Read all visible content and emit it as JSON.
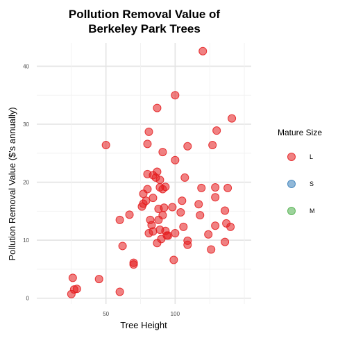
{
  "chart_data": {
    "type": "scatter",
    "title_lines": [
      "Pollution Removal Value of",
      "Berkeley Park Trees"
    ],
    "xlabel": "Tree Height",
    "ylabel": "Pollution Removal Value ($'s annually)",
    "xlim": [
      0,
      155
    ],
    "ylim": [
      -1,
      44
    ],
    "xticks": [
      50,
      100
    ],
    "yticks": [
      0,
      10,
      20,
      30,
      40
    ],
    "x_gridlines": [
      25,
      50,
      75,
      100,
      125,
      150
    ],
    "y_gridlines": [
      0,
      5,
      10,
      15,
      20,
      25,
      30,
      35,
      40
    ],
    "grid": true,
    "legend": {
      "title": "Mature Size",
      "position": "right",
      "entries": [
        {
          "label": "L",
          "color": "#e41a1c"
        },
        {
          "label": "S",
          "color": "#377eb8"
        },
        {
          "label": "M",
          "color": "#4daf4a"
        }
      ]
    },
    "series": [
      {
        "name": "L",
        "color": "#e41a1c",
        "points": [
          [
            25,
            0.7
          ],
          [
            26,
            3.5
          ],
          [
            27,
            1.5
          ],
          [
            29,
            1.6
          ],
          [
            45,
            3.3
          ],
          [
            60,
            1.1
          ],
          [
            50,
            26.4
          ],
          [
            60,
            13.5
          ],
          [
            62,
            9.0
          ],
          [
            67,
            14.4
          ],
          [
            70,
            6.1
          ],
          [
            70,
            5.8
          ],
          [
            76,
            15.8
          ],
          [
            77,
            16.3
          ],
          [
            77,
            18.0
          ],
          [
            79,
            16.8
          ],
          [
            80,
            21.4
          ],
          [
            80,
            18.8
          ],
          [
            80,
            26.6
          ],
          [
            81,
            28.7
          ],
          [
            81,
            11.2
          ],
          [
            82,
            13.5
          ],
          [
            83,
            12.6
          ],
          [
            84,
            11.5
          ],
          [
            84,
            17.3
          ],
          [
            84,
            21.2
          ],
          [
            86,
            20.8
          ],
          [
            87,
            32.8
          ],
          [
            87,
            21.8
          ],
          [
            87,
            9.5
          ],
          [
            88,
            13.5
          ],
          [
            88,
            15.4
          ],
          [
            89,
            20.4
          ],
          [
            89,
            19.1
          ],
          [
            89,
            11.8
          ],
          [
            90,
            10.2
          ],
          [
            91,
            25.2
          ],
          [
            91,
            18.8
          ],
          [
            91,
            14.3
          ],
          [
            92,
            15.6
          ],
          [
            93,
            19.2
          ],
          [
            93,
            11.6
          ],
          [
            94,
            10.8
          ],
          [
            95,
            10.8
          ],
          [
            98,
            15.7
          ],
          [
            99,
            6.6
          ],
          [
            100,
            35.0
          ],
          [
            100,
            23.8
          ],
          [
            100,
            11.2
          ],
          [
            104,
            14.8
          ],
          [
            105,
            16.8
          ],
          [
            106,
            12.3
          ],
          [
            107,
            20.8
          ],
          [
            109,
            26.2
          ],
          [
            109,
            9.9
          ],
          [
            109,
            9.2
          ],
          [
            117,
            16.2
          ],
          [
            118,
            14.3
          ],
          [
            119,
            19.0
          ],
          [
            120,
            42.6
          ],
          [
            124,
            11.0
          ],
          [
            126,
            8.4
          ],
          [
            127,
            26.4
          ],
          [
            129,
            12.5
          ],
          [
            129,
            17.4
          ],
          [
            129,
            19.1
          ],
          [
            130,
            28.9
          ],
          [
            136,
            15.1
          ],
          [
            136,
            9.7
          ],
          [
            137,
            12.9
          ],
          [
            138,
            19.0
          ],
          [
            140,
            12.3
          ],
          [
            141,
            31.0
          ]
        ]
      }
    ]
  }
}
